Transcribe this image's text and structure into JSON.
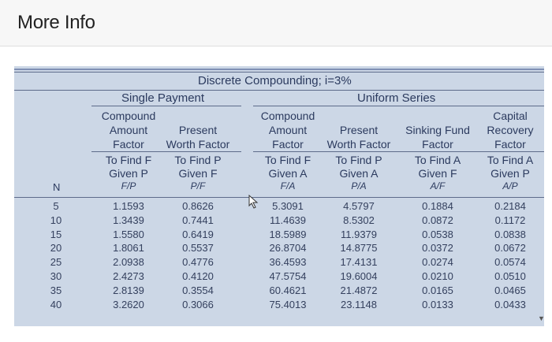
{
  "header": {
    "title": "More Info"
  },
  "table": {
    "title": "Discrete Compounding; i=3%",
    "groups": {
      "single": "Single Payment",
      "uniform": "Uniform Series"
    },
    "n_label": "N",
    "columns": [
      {
        "l1": "Compound",
        "l2": "Amount",
        "l3": "Factor",
        "find": "To Find F",
        "given": "Given P",
        "sym": "F/P"
      },
      {
        "l1": "",
        "l2": "Present",
        "l3": "Worth Factor",
        "find": "To Find P",
        "given": "Given F",
        "sym": "P/F"
      },
      {
        "l1": "Compound",
        "l2": "Amount",
        "l3": "Factor",
        "find": "To Find F",
        "given": "Given A",
        "sym": "F/A"
      },
      {
        "l1": "",
        "l2": "Present",
        "l3": "Worth Factor",
        "find": "To Find P",
        "given": "Given A",
        "sym": "P/A"
      },
      {
        "l1": "",
        "l2": "Sinking Fund",
        "l3": "Factor",
        "find": "To Find A",
        "given": "Given F",
        "sym": "A/F"
      },
      {
        "l1": "Capital",
        "l2": "Recovery",
        "l3": "Factor",
        "find": "To Find A",
        "given": "Given P",
        "sym": "A/P"
      }
    ],
    "rows": [
      {
        "n": "5",
        "v": [
          "1.1593",
          "0.8626",
          "5.3091",
          "4.5797",
          "0.1884",
          "0.2184"
        ]
      },
      {
        "n": "10",
        "v": [
          "1.3439",
          "0.7441",
          "11.4639",
          "8.5302",
          "0.0872",
          "0.1172"
        ]
      },
      {
        "n": "15",
        "v": [
          "1.5580",
          "0.6419",
          "18.5989",
          "11.9379",
          "0.0538",
          "0.0838"
        ]
      },
      {
        "n": "20",
        "v": [
          "1.8061",
          "0.5537",
          "26.8704",
          "14.8775",
          "0.0372",
          "0.0672"
        ]
      },
      {
        "n": "25",
        "v": [
          "2.0938",
          "0.4776",
          "36.4593",
          "17.4131",
          "0.0274",
          "0.0574"
        ]
      },
      {
        "n": "30",
        "v": [
          "2.4273",
          "0.4120",
          "47.5754",
          "19.6004",
          "0.0210",
          "0.0510"
        ]
      },
      {
        "n": "35",
        "v": [
          "2.8139",
          "0.3554",
          "60.4621",
          "21.4872",
          "0.0165",
          "0.0465"
        ]
      },
      {
        "n": "40",
        "v": [
          "3.2620",
          "0.3066",
          "75.4013",
          "23.1148",
          "0.0133",
          "0.0433"
        ]
      }
    ]
  }
}
